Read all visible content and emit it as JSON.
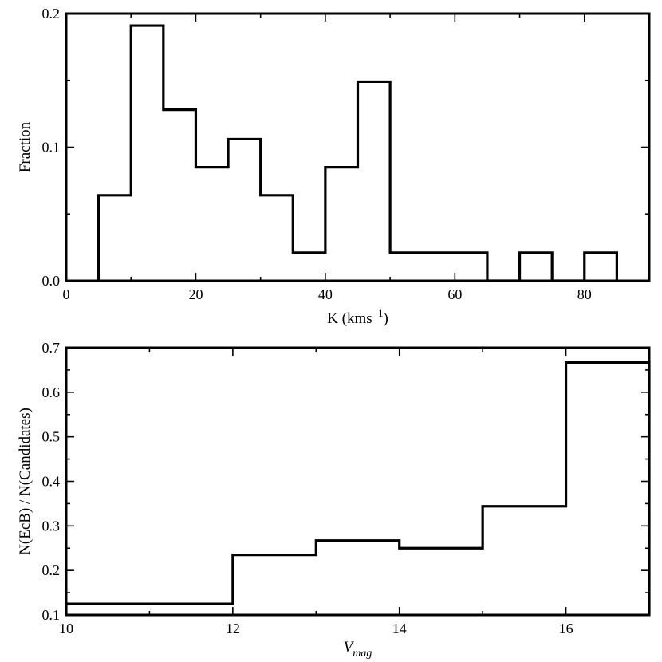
{
  "chart_data": [
    {
      "type": "histogram",
      "title": "",
      "xlabel": "K (kms",
      "xlabel_sup": "−1",
      "xlabel_close": ")",
      "ylabel": "Fraction",
      "xlim": [
        0,
        90
      ],
      "ylim": [
        0,
        0.2
      ],
      "xticks_major": [
        0,
        20,
        40,
        60,
        80
      ],
      "xtick_labels": [
        "0",
        "20",
        "40",
        "60",
        "80"
      ],
      "xticks_minor": [
        10,
        30,
        50,
        70
      ],
      "yticks_major": [
        0,
        0.1,
        0.2
      ],
      "ytick_labels": [
        "0.0",
        "0.1",
        "0.2"
      ],
      "yticks_minor": [
        0.05,
        0.15
      ],
      "bin_edges": [
        5,
        10,
        15,
        20,
        25,
        30,
        35,
        40,
        45,
        50,
        55,
        60,
        65,
        70,
        75,
        80,
        85
      ],
      "values": [
        0.064,
        0.191,
        0.128,
        0.085,
        0.106,
        0.064,
        0.021,
        0.085,
        0.149,
        0.021,
        0.021,
        0.021,
        0,
        0.021,
        0,
        0.021
      ],
      "grid": false,
      "legend": "none"
    },
    {
      "type": "histogram",
      "title": "",
      "xlabel": "V",
      "xlabel_sub": "mag",
      "ylabel": "N(EcB) / N(Candidates)",
      "xlim": [
        10,
        17
      ],
      "ylim": [
        0.1,
        0.7
      ],
      "xticks_major": [
        10,
        12,
        14,
        16
      ],
      "xtick_labels": [
        "10",
        "12",
        "14",
        "16"
      ],
      "xticks_minor": [
        11,
        13,
        15,
        17
      ],
      "yticks_major": [
        0.1,
        0.2,
        0.3,
        0.4,
        0.5,
        0.6,
        0.7
      ],
      "ytick_labels": [
        "0.1",
        "0.2",
        "0.3",
        "0.4",
        "0.5",
        "0.6",
        "0.7"
      ],
      "yticks_minor": [
        0.15,
        0.25,
        0.35,
        0.45,
        0.55,
        0.65
      ],
      "bin_edges": [
        10,
        12,
        13,
        14,
        15,
        16,
        17
      ],
      "values": [
        0.125,
        0.235,
        0.267,
        0.25,
        0.344,
        0.667
      ],
      "grid": false,
      "legend": "none"
    }
  ]
}
